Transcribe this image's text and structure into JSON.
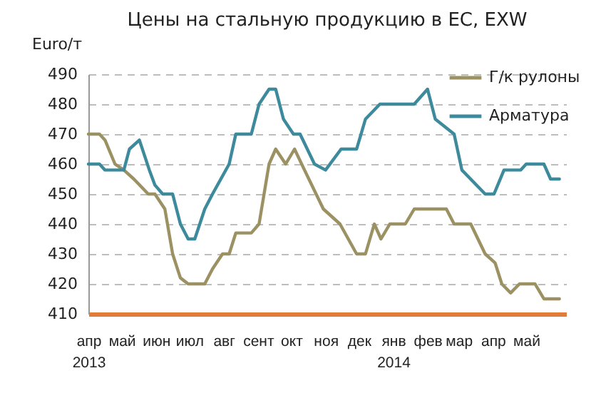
{
  "chart_data": {
    "type": "line",
    "title": "Цены на стальную продукцию в ЕС, EXW",
    "ylabel": "Euro/т",
    "ylim": [
      410,
      490
    ],
    "yticks": [
      410,
      420,
      430,
      440,
      450,
      460,
      470,
      480,
      490
    ],
    "xlim": [
      "2013-04-01",
      "2014-06-06"
    ],
    "xticks": [
      {
        "value": "2013-04-01",
        "label": "апр\n2013"
      },
      {
        "value": "2013-05-01",
        "label": "май"
      },
      {
        "value": "2013-06-01",
        "label": "июн"
      },
      {
        "value": "2013-07-01",
        "label": "июл"
      },
      {
        "value": "2013-08-01",
        "label": "авг"
      },
      {
        "value": "2013-09-01",
        "label": "сент"
      },
      {
        "value": "2013-10-01",
        "label": "окт"
      },
      {
        "value": "2013-11-01",
        "label": "ноя"
      },
      {
        "value": "2013-12-01",
        "label": "дек"
      },
      {
        "value": "2014-01-01",
        "label": "янв\n2014"
      },
      {
        "value": "2014-02-01",
        "label": "фев"
      },
      {
        "value": "2014-03-01",
        "label": "мар"
      },
      {
        "value": "2014-04-01",
        "label": "апр"
      },
      {
        "value": "2014-05-01",
        "label": "май"
      }
    ],
    "grid": "y",
    "legend": "top right",
    "series": [
      {
        "name": "Г/к рулоны",
        "color": "#9b9163",
        "x": [
          "2013-04-01",
          "2013-04-11",
          "2013-04-16",
          "2013-04-25",
          "2013-05-03",
          "2013-05-12",
          "2013-05-25",
          "2013-05-31",
          "2013-06-09",
          "2013-06-16",
          "2013-06-23",
          "2013-06-30",
          "2013-07-15",
          "2013-07-22",
          "2013-07-31",
          "2013-08-06",
          "2013-08-12",
          "2013-08-26",
          "2013-09-02",
          "2013-09-11",
          "2013-09-17",
          "2013-09-26",
          "2013-10-04",
          "2013-10-13",
          "2013-10-30",
          "2013-11-14",
          "2013-11-29",
          "2013-12-07",
          "2013-12-15",
          "2013-12-21",
          "2013-12-29",
          "2014-01-12",
          "2014-01-20",
          "2014-02-18",
          "2014-02-25",
          "2014-03-12",
          "2014-03-25",
          "2014-04-03",
          "2014-04-09",
          "2014-04-17",
          "2014-04-25",
          "2014-05-09",
          "2014-05-17",
          "2014-05-31"
        ],
        "values": [
          470,
          470,
          468,
          460,
          458,
          455,
          450,
          450,
          445,
          430,
          422,
          420,
          420,
          425,
          430,
          430,
          437,
          437,
          440,
          460,
          465,
          460,
          465,
          458,
          445,
          440,
          430,
          430,
          440,
          435,
          440,
          440,
          445,
          445,
          440,
          440,
          430,
          427,
          420,
          417,
          420,
          420,
          415,
          415
        ]
      },
      {
        "name": "Арматура",
        "color": "#3d8a9c",
        "x": [
          "2013-04-01",
          "2013-04-11",
          "2013-04-16",
          "2013-05-03",
          "2013-05-08",
          "2013-05-17",
          "2013-05-26",
          "2013-05-31",
          "2013-06-07",
          "2013-06-16",
          "2013-06-23",
          "2013-06-30",
          "2013-07-06",
          "2013-07-15",
          "2013-07-22",
          "2013-08-06",
          "2013-08-12",
          "2013-08-26",
          "2013-09-02",
          "2013-09-11",
          "2013-09-17",
          "2013-09-24",
          "2013-10-03",
          "2013-10-09",
          "2013-10-22",
          "2013-11-01",
          "2013-11-15",
          "2013-11-29",
          "2013-12-07",
          "2013-12-20",
          "2014-01-20",
          "2014-02-01",
          "2014-02-08",
          "2014-02-25",
          "2014-03-04",
          "2014-03-25",
          "2014-04-02",
          "2014-04-11",
          "2014-04-26",
          "2014-05-01",
          "2014-05-17",
          "2014-05-23",
          "2014-05-31"
        ],
        "values": [
          460,
          460,
          458,
          458,
          465,
          468,
          458,
          453,
          450,
          450,
          440,
          435,
          435,
          445,
          450,
          460,
          470,
          470,
          480,
          485,
          485,
          475,
          470,
          470,
          460,
          458,
          465,
          465,
          475,
          480,
          480,
          485,
          475,
          470,
          458,
          450,
          450,
          458,
          458,
          460,
          460,
          455,
          455
        ]
      }
    ]
  }
}
